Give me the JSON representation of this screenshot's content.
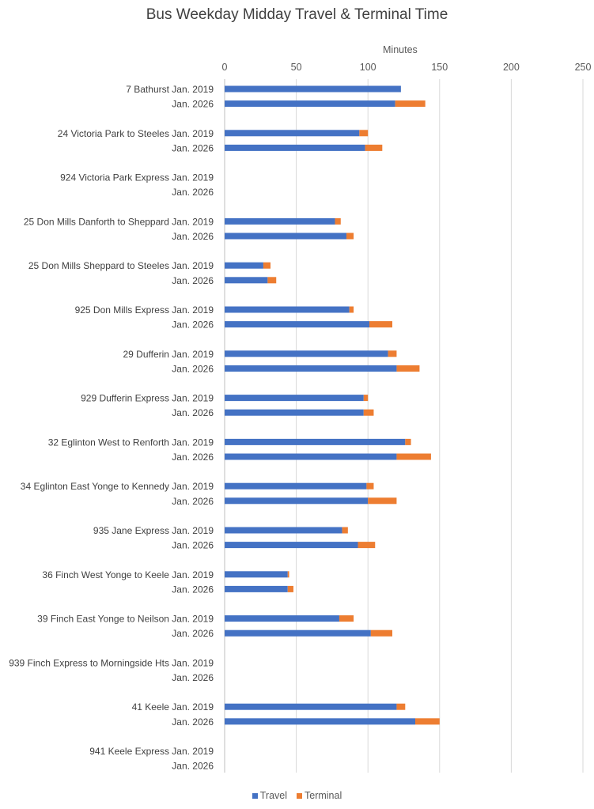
{
  "chart_data": {
    "type": "bar",
    "orientation": "horizontal",
    "stacked": true,
    "title": "Bus Weekday Midday Travel & Terminal Time",
    "xlabel": "Minutes",
    "ylabel": "",
    "xlim": [
      0,
      250
    ],
    "xticks": [
      0,
      50,
      100,
      150,
      200,
      250
    ],
    "x_axis_position": "top",
    "grid": true,
    "legend": {
      "position": "bottom",
      "entries": [
        "Travel",
        "Terminal"
      ]
    },
    "colors": {
      "Travel": "#4472C4",
      "Terminal": "#ED7D31"
    },
    "categories": [
      "7 Bathurst Jan. 2019",
      "Jan. 2026",
      "24 Victoria Park to Steeles Jan. 2019",
      "Jan. 2026",
      "924 Victoria Park Express Jan. 2019",
      "Jan. 2026",
      "25 Don Mills Danforth to Sheppard Jan. 2019",
      "Jan. 2026",
      "25 Don Mills Sheppard to Steeles Jan. 2019",
      "Jan. 2026",
      "925 Don Mills Express Jan. 2019",
      "Jan. 2026",
      "29 Dufferin Jan. 2019",
      "Jan. 2026",
      "929 Dufferin Express Jan. 2019",
      "Jan. 2026",
      "32 Eglinton West to Renforth Jan. 2019",
      "Jan. 2026",
      "34 Eglinton East Yonge to Kennedy Jan. 2019",
      "Jan. 2026",
      "935 Jane Express Jan. 2019",
      "Jan. 2026",
      "36 Finch West Yonge to Keele Jan. 2019",
      "Jan. 2026",
      "39 Finch East Yonge to Neilson Jan. 2019",
      "Jan. 2026",
      "939 Finch Express to Morningside Hts Jan. 2019",
      "Jan. 2026",
      "41 Keele Jan. 2019",
      "Jan. 2026",
      "941 Keele Express Jan. 2019",
      "Jan. 2026"
    ],
    "series": [
      {
        "name": "Travel",
        "values": [
          123,
          119,
          94,
          98,
          null,
          null,
          77,
          85,
          27,
          30,
          87,
          101,
          114,
          120,
          97,
          97,
          126,
          120,
          99,
          100,
          82,
          93,
          44,
          44,
          80,
          102,
          null,
          null,
          120,
          133,
          null,
          null
        ]
      },
      {
        "name": "Terminal",
        "values": [
          0,
          21,
          6,
          12,
          null,
          null,
          4,
          5,
          5,
          6,
          3,
          16,
          6,
          16,
          3,
          7,
          4,
          24,
          5,
          20,
          4,
          12,
          1,
          4,
          10,
          15,
          null,
          null,
          6,
          17,
          null,
          null
        ]
      }
    ]
  }
}
